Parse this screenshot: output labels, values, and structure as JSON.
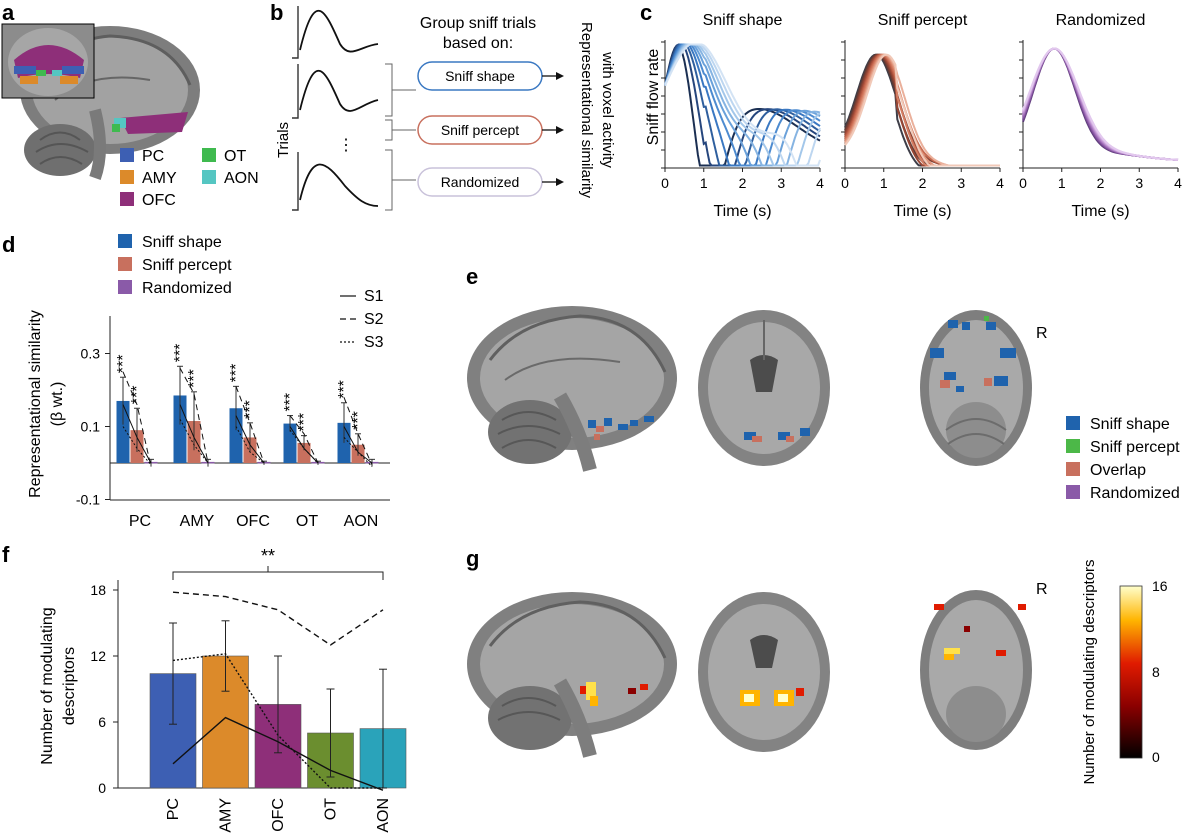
{
  "panels": {
    "a": {
      "label": "a",
      "legend": [
        {
          "name": "PC",
          "color": "#3d5fb3"
        },
        {
          "name": "AMY",
          "color": "#dc8a2a"
        },
        {
          "name": "OFC",
          "color": "#8e2f79"
        },
        {
          "name": "OT",
          "color": "#3fba4f"
        },
        {
          "name": "AON",
          "color": "#55c6c2"
        }
      ]
    },
    "b": {
      "label": "b",
      "header_line1": "Group sniff trials",
      "header_line2": "based on:",
      "trials_label": "Trials",
      "dots": "⋮",
      "groups": [
        "Sniff shape",
        "Sniff percept",
        "Randomized"
      ],
      "group_colors": [
        "#3a78c2",
        "#c8705e",
        "#c9c2da"
      ],
      "rsa_line1": "Representational similarity",
      "rsa_line2": "with voxel activity"
    },
    "c": {
      "label": "c",
      "ylabel": "Sniff flow rate",
      "xlabel": "Time (s)"
    },
    "d": {
      "label": "d",
      "legend": [
        "Sniff shape",
        "Sniff percept",
        "Randomized"
      ],
      "line_legend": [
        "S1",
        "S2",
        "S3"
      ],
      "stars": "***"
    },
    "e": {
      "label": "e",
      "r_marker": "R",
      "legend": [
        {
          "name": "Sniff shape",
          "color": "#1f63ad"
        },
        {
          "name": "Sniff percept",
          "color": "#4cb848"
        },
        {
          "name": "Overlap",
          "color": "#c8705e"
        },
        {
          "name": "Randomized",
          "color": "#8a5aa8"
        }
      ]
    },
    "f": {
      "label": "f",
      "significance": "**"
    },
    "g": {
      "label": "g",
      "r_marker": "R",
      "colorbar_label": "Number of modulating descriptors",
      "colorbar_ticks": [
        "16",
        "8",
        "0"
      ]
    }
  },
  "chart_data": [
    {
      "id": "c",
      "type": "line",
      "xlabel": "Time (s)",
      "ylabel": "Sniff flow rate",
      "xlim": [
        0,
        4
      ],
      "xticks": [
        "0",
        "1",
        "2",
        "3",
        "4"
      ],
      "subplots": [
        {
          "title": "Sniff shape",
          "n_traces": 10,
          "colors": [
            "#1b2f52",
            "#26467d",
            "#2f5f9e",
            "#3a78c2",
            "#4d8bd0",
            "#6aa1da",
            "#86b4e2",
            "#a3c7ea",
            "#bdd6f0",
            "#d3e3f4"
          ]
        },
        {
          "title": "Sniff percept",
          "n_traces": 10,
          "colors": [
            "#3e3e48",
            "#5a3a36",
            "#7a3e32",
            "#964634",
            "#b1553f",
            "#c7694f",
            "#d47d62",
            "#e0957b",
            "#eab09b",
            "#f1c9b8"
          ]
        },
        {
          "title": "Randomized",
          "n_traces": 10,
          "colors": [
            "#5a3a78",
            "#6c4488",
            "#7d4f98",
            "#8e5ba8",
            "#9d6bb5",
            "#ac7cc2",
            "#bb8ecf",
            "#c9a1da",
            "#d6b4e4",
            "#e2c8ee"
          ]
        }
      ]
    },
    {
      "id": "d",
      "type": "bar",
      "ylabel": "Representational similarity (β wt.)",
      "ylim": [
        -0.1,
        0.4
      ],
      "yticks": [
        "0.3",
        "0.1",
        "-0.1"
      ],
      "categories": [
        "PC",
        "AMY",
        "OFC",
        "OT",
        "AON"
      ],
      "series": [
        {
          "name": "Sniff shape",
          "color": "#1f63ad",
          "values": [
            0.17,
            0.185,
            0.15,
            0.108,
            0.11
          ],
          "errors": [
            0.065,
            0.08,
            0.06,
            0.022,
            0.055
          ]
        },
        {
          "name": "Sniff percept",
          "color": "#c8705e",
          "values": [
            0.09,
            0.115,
            0.07,
            0.055,
            0.05
          ],
          "errors": [
            0.06,
            0.08,
            0.04,
            0.02,
            0.03
          ]
        },
        {
          "name": "Randomized",
          "color": "#8a5aa8",
          "values": [
            0.0,
            0.0,
            0.0,
            0.0,
            0.0
          ],
          "errors": [
            0.01,
            0.01,
            0.005,
            0.005,
            0.01
          ]
        }
      ],
      "subject_lines": [
        {
          "name": "S1",
          "dash": "solid",
          "values": [
            [
              0.16,
              0.07,
              0.0
            ],
            [
              0.16,
              0.07,
              0.0
            ],
            [
              0.13,
              0.05,
              0.0
            ],
            [
              0.1,
              0.04,
              0.0
            ],
            [
              0.1,
              0.03,
              0.0
            ]
          ]
        },
        {
          "name": "S2",
          "dash": "dashed",
          "values": [
            [
              0.25,
              0.16,
              -0.01
            ],
            [
              0.26,
              0.19,
              0.0
            ],
            [
              0.21,
              0.11,
              0.0
            ],
            [
              0.13,
              0.08,
              0.0
            ],
            [
              0.18,
              0.08,
              -0.005
            ]
          ]
        },
        {
          "name": "S3",
          "dash": "dotted",
          "values": [
            [
              0.1,
              0.04,
              -0.005
            ],
            [
              0.12,
              0.05,
              0.0
            ],
            [
              0.1,
              0.03,
              0.0
            ],
            [
              0.09,
              0.04,
              0.0
            ],
            [
              0.07,
              0.03,
              -0.01
            ]
          ]
        }
      ],
      "significance": "***"
    },
    {
      "id": "f",
      "type": "bar",
      "ylabel": "Number of modulating descriptors",
      "ylim": [
        0,
        18
      ],
      "yticks": [
        "18",
        "12",
        "6",
        "0"
      ],
      "categories": [
        "PC",
        "AMY",
        "OFC",
        "OT",
        "AON"
      ],
      "colors": [
        "#3d5fb3",
        "#dc8a2a",
        "#8e2f79",
        "#6b8e2f",
        "#2aa3ba"
      ],
      "values": [
        10.4,
        12.0,
        7.6,
        5.0,
        5.4
      ],
      "errors": [
        4.6,
        3.2,
        4.4,
        4.0,
        5.4
      ],
      "subject_lines": [
        {
          "name": "S1",
          "dash": "solid",
          "values": [
            2.2,
            6.4,
            4.2,
            1.6,
            -0.2
          ]
        },
        {
          "name": "S2",
          "dash": "dashed",
          "values": [
            17.8,
            17.4,
            16.2,
            13.0,
            16.2
          ]
        },
        {
          "name": "S3",
          "dash": "dotted",
          "values": [
            11.6,
            12.2,
            4.8,
            0.0,
            0.0
          ]
        }
      ],
      "significance": "**"
    }
  ]
}
